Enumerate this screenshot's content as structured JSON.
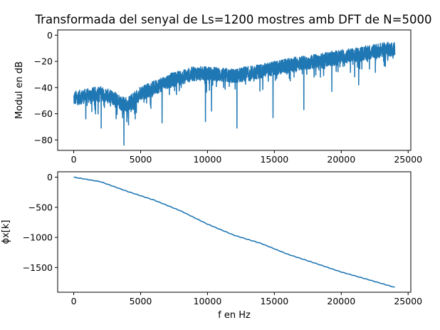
{
  "chart_data": [
    {
      "type": "line",
      "title": "Transformada del senyal de Ls=1200 mostres amb DFT de N=5000",
      "xlabel": "",
      "ylabel": "Modul en dB",
      "xlim": [
        -1200,
        25200
      ],
      "ylim": [
        -88,
        4
      ],
      "xticks": [
        0,
        5000,
        10000,
        15000,
        20000,
        25000
      ],
      "yticks": [
        0,
        -20,
        -40,
        -60,
        -80
      ],
      "xtick_labels": [
        "0",
        "5000",
        "10000",
        "15000",
        "20000",
        "25000"
      ],
      "ytick_labels": [
        "0",
        "−20",
        "−40",
        "−60",
        "−80"
      ],
      "grid": false,
      "color": "#1f77b4",
      "x_range": [
        0,
        24000
      ],
      "n_points": 2501,
      "trend": {
        "x": [
          0,
          1000,
          2000,
          3000,
          4000,
          5000,
          6000,
          7000,
          8000,
          9000,
          10000,
          11000,
          12000,
          13000,
          14000,
          15000,
          16000,
          17000,
          18000,
          19000,
          20000,
          21000,
          22000,
          23000,
          24000
        ],
        "y": [
          -50,
          -48,
          -46,
          -50,
          -55,
          -46,
          -42,
          -37,
          -34,
          -31,
          -31,
          -32,
          -33,
          -31,
          -29,
          -27,
          -25,
          -23,
          -22,
          -20,
          -18,
          -17,
          -15,
          -13,
          -12
        ]
      },
      "dips": [
        {
          "x": 3750,
          "y": -84
        },
        {
          "x": 12200,
          "y": -71
        },
        {
          "x": 2050,
          "y": -71
        },
        {
          "x": 9850,
          "y": -66
        },
        {
          "x": 6600,
          "y": -67
        },
        {
          "x": 4600,
          "y": -64
        },
        {
          "x": 900,
          "y": -64
        },
        {
          "x": 14900,
          "y": -63
        },
        {
          "x": 17200,
          "y": -57
        },
        {
          "x": 10300,
          "y": -58
        },
        {
          "x": 19300,
          "y": -43
        },
        {
          "x": 21300,
          "y": -38
        }
      ]
    },
    {
      "type": "line",
      "title": "",
      "xlabel": "f en Hz",
      "ylabel": "ϕx[k]",
      "xlim": [
        -1200,
        25200
      ],
      "ylim": [
        -1911,
        90
      ],
      "xticks": [
        0,
        5000,
        10000,
        15000,
        20000,
        25000
      ],
      "yticks": [
        0,
        -500,
        -1000,
        -1500
      ],
      "xtick_labels": [
        "0",
        "5000",
        "10000",
        "15000",
        "20000",
        "25000"
      ],
      "ytick_labels": [
        "0",
        "−500",
        "−1000",
        "−1500"
      ],
      "grid": false,
      "color": "#1f77b4",
      "x": [
        0,
        2000,
        4000,
        6000,
        8000,
        10000,
        12000,
        14000,
        16000,
        18000,
        20000,
        22000,
        24000
      ],
      "y": [
        0,
        -75,
        -235,
        -380,
        -560,
        -780,
        -965,
        -1100,
        -1280,
        -1425,
        -1575,
        -1700,
        -1830
      ]
    }
  ]
}
